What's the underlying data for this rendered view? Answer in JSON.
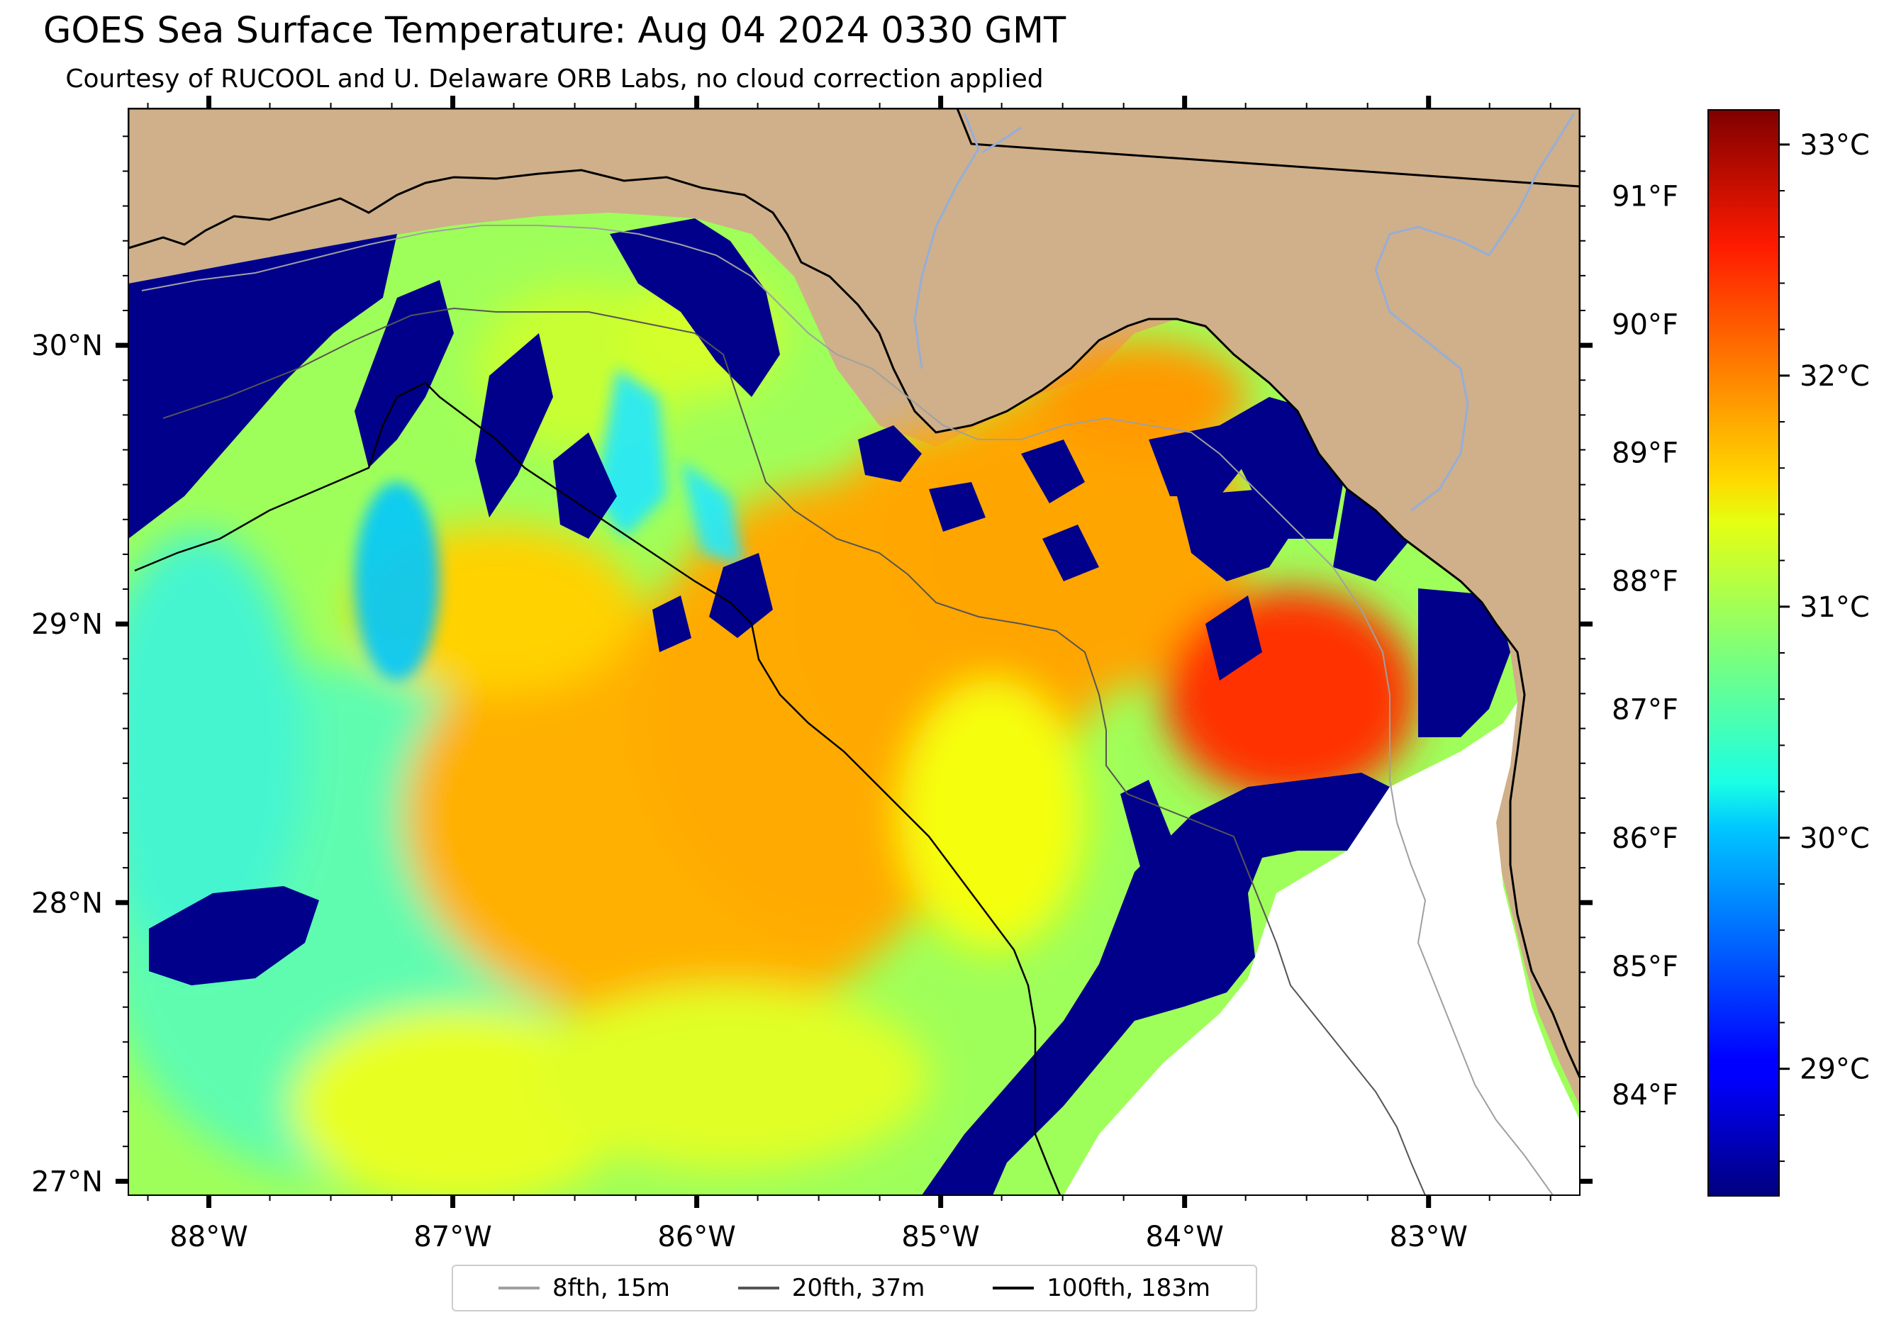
{
  "title": "GOES Sea Surface Temperature: Aug 04 2024 0330 GMT",
  "subtitle": "Courtesy of RUCOOL and U. Delaware ORB Labs, no cloud correction applied",
  "map": {
    "lon_range": [
      -88.33,
      -82.38
    ],
    "lat_range": [
      26.95,
      30.85
    ],
    "lon_ticks": [
      {
        "value": -88,
        "label": "88°W"
      },
      {
        "value": -87,
        "label": "87°W"
      },
      {
        "value": -86,
        "label": "86°W"
      },
      {
        "value": -85,
        "label": "85°W"
      },
      {
        "value": -84,
        "label": "84°W"
      },
      {
        "value": -83,
        "label": "83°W"
      }
    ],
    "lat_ticks": [
      {
        "value": 30,
        "label": "30°N"
      },
      {
        "value": 29,
        "label": "29°N"
      },
      {
        "value": 28,
        "label": "28°N"
      },
      {
        "value": 27,
        "label": "27°N"
      }
    ],
    "land_color": "#cfb08a",
    "nodata_color": "#ffffff",
    "cloud_color": "#00008b"
  },
  "colorbar": {
    "celsius_range": [
      28.45,
      33.15
    ],
    "celsius_ticks": [
      {
        "value": 29,
        "label": "29°C"
      },
      {
        "value": 30,
        "label": "30°C"
      },
      {
        "value": 31,
        "label": "31°C"
      },
      {
        "value": 32,
        "label": "32°C"
      },
      {
        "value": 33,
        "label": "33°C"
      }
    ],
    "fahrenheit_ticks": [
      {
        "value": 84,
        "label": "84°F"
      },
      {
        "value": 85,
        "label": "85°F"
      },
      {
        "value": 86,
        "label": "86°F"
      },
      {
        "value": 87,
        "label": "87°F"
      },
      {
        "value": 88,
        "label": "88°F"
      },
      {
        "value": 89,
        "label": "89°F"
      },
      {
        "value": 90,
        "label": "90°F"
      },
      {
        "value": 91,
        "label": "91°F"
      }
    ],
    "colormap": "jet"
  },
  "legend": [
    {
      "label": "8fth, 15m",
      "color": "#a0a0a0"
    },
    {
      "label": "20fth, 37m",
      "color": "#555555"
    },
    {
      "label": "100fth, 183m",
      "color": "#000000"
    }
  ]
}
